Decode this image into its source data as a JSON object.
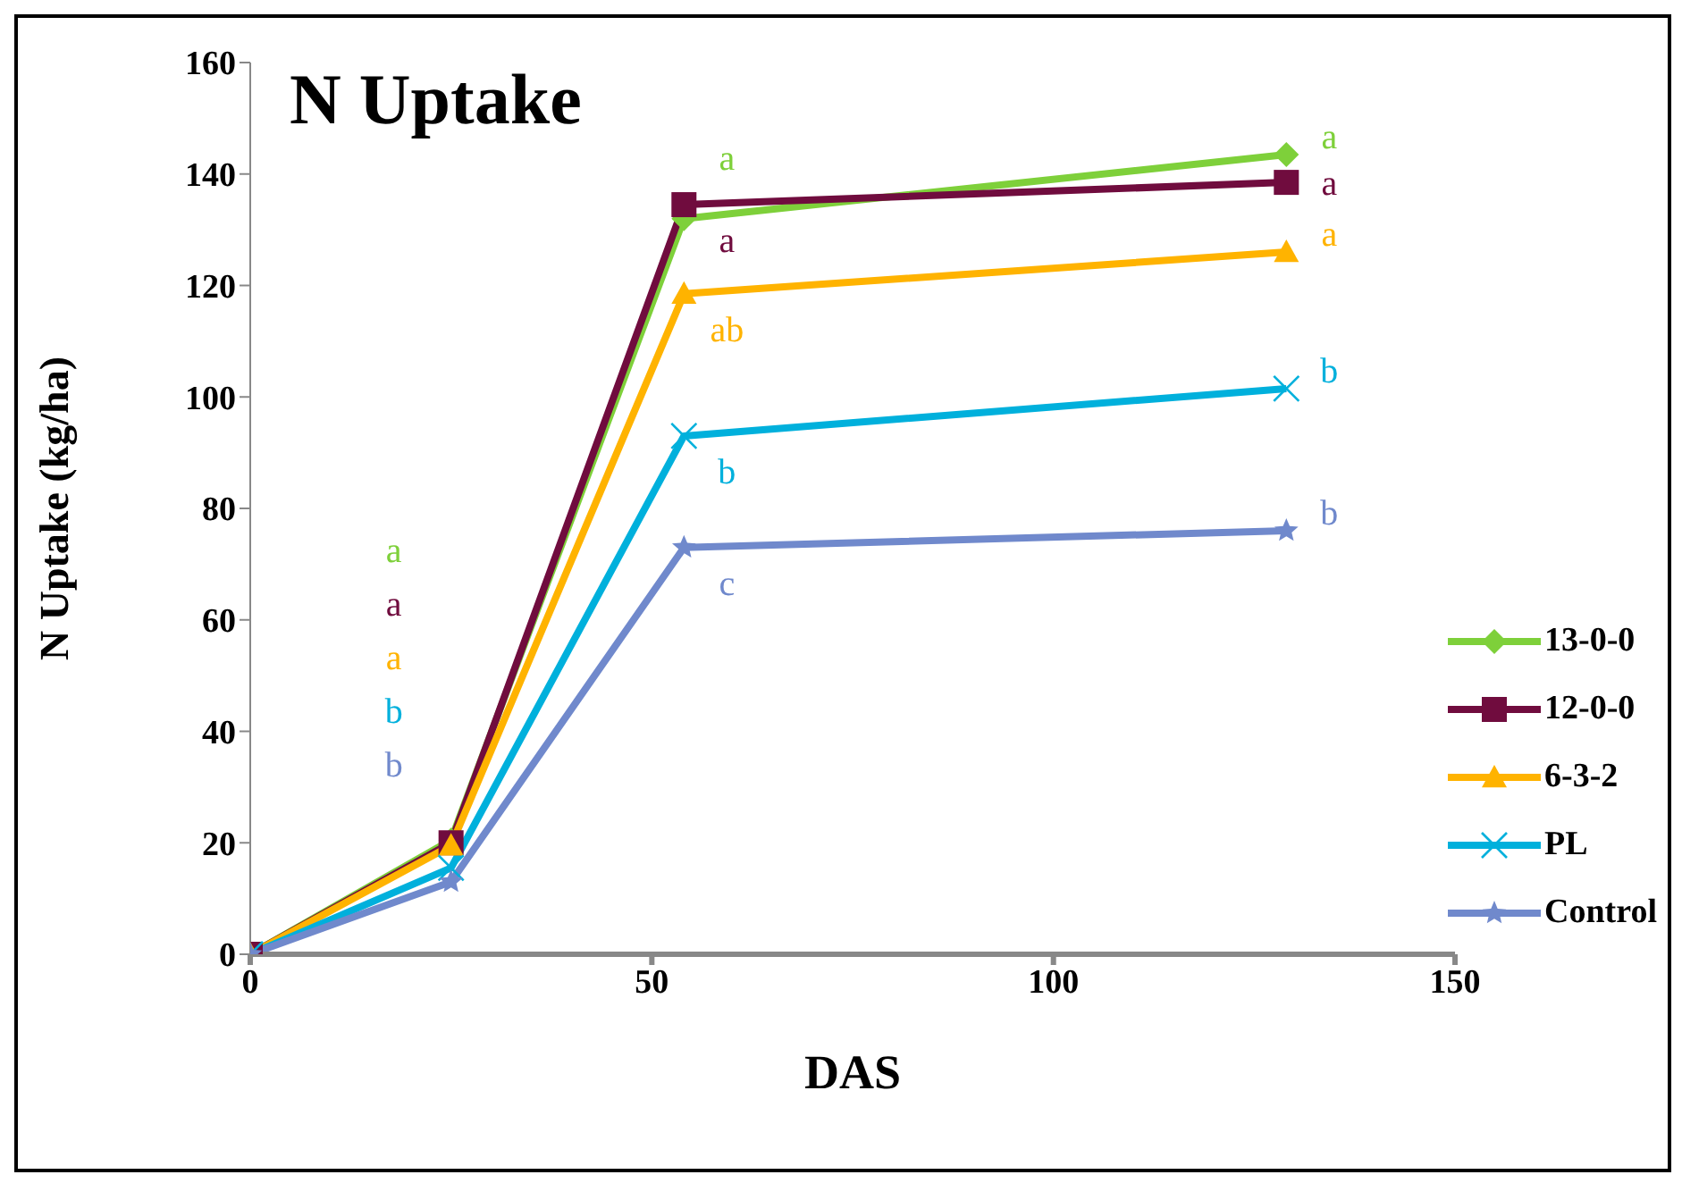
{
  "chart_data": {
    "type": "line",
    "title": "N Uptake",
    "xlabel": "DAS",
    "ylabel": "N Uptake (kg/ha)",
    "x": [
      0,
      25,
      54,
      129
    ],
    "series": [
      {
        "name": "13-0-0",
        "color": "#7ed03a",
        "marker": "diamond",
        "values": [
          0,
          20.5,
          132,
          143.5
        ]
      },
      {
        "name": "12-0-0",
        "color": "#700c3e",
        "marker": "square",
        "values": [
          0,
          20,
          134.5,
          138.5
        ]
      },
      {
        "name": "6-3-2",
        "color": "#ffb300",
        "marker": "triangle",
        "values": [
          0,
          19.5,
          118.5,
          126
        ]
      },
      {
        "name": "PL",
        "color": "#00b0dc",
        "marker": "cross",
        "values": [
          0,
          15.5,
          93,
          101.5
        ]
      },
      {
        "name": "Control",
        "color": "#7089cc",
        "marker": "star",
        "values": [
          0,
          13,
          73,
          76
        ]
      }
    ],
    "xlim": [
      0,
      150
    ],
    "xticks": [
      0,
      50,
      100,
      150
    ],
    "ylim": [
      0,
      160
    ],
    "yticks": [
      0,
      20,
      40,
      60,
      80,
      100,
      120,
      140,
      160
    ],
    "grid": false,
    "legend": "right",
    "annotations": [
      "a",
      "a",
      "a",
      "b",
      "b",
      "a",
      "a",
      "ab",
      "b",
      "c",
      "a",
      "a",
      "a",
      "b",
      "b"
    ]
  }
}
